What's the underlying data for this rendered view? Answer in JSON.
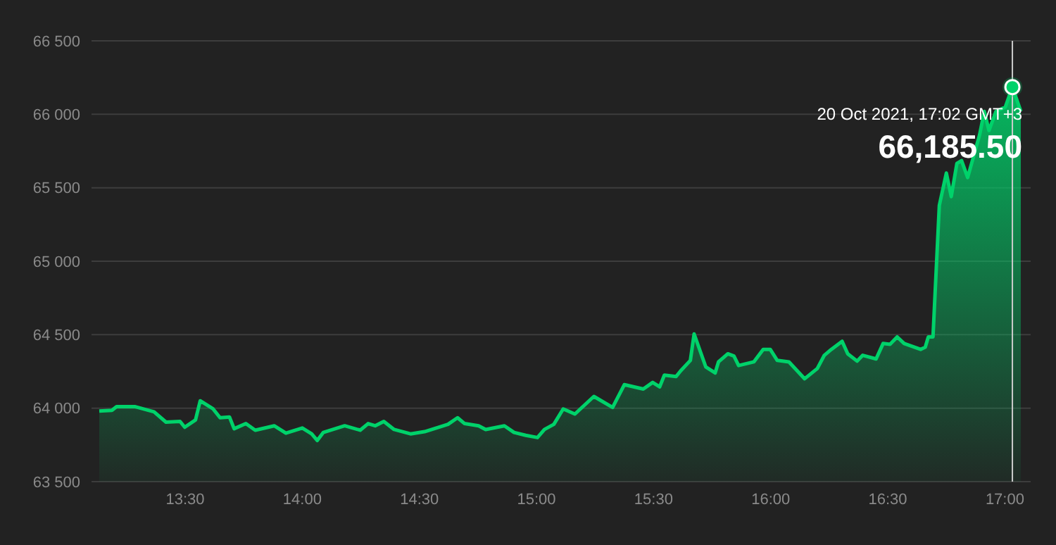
{
  "chart_data": {
    "type": "area",
    "grid": "y",
    "xlim": [
      13.1,
      17.11
    ],
    "xticks": [
      {
        "value": 13.5,
        "label": "13:30"
      },
      {
        "value": 14,
        "label": "14:00"
      },
      {
        "value": 14.5,
        "label": "14:30"
      },
      {
        "value": 15,
        "label": "15:00"
      },
      {
        "value": 15.5,
        "label": "15:30"
      },
      {
        "value": 16,
        "label": "16:00"
      },
      {
        "value": 16.5,
        "label": "16:30"
      },
      {
        "value": 17,
        "label": "17:00"
      }
    ],
    "ylim": [
      63500,
      66500
    ],
    "yticks": [
      {
        "value": 63500,
        "label": "63 500"
      },
      {
        "value": 64000,
        "label": "64 000"
      },
      {
        "value": 64500,
        "label": "64 500"
      },
      {
        "value": 65000,
        "label": "65 000"
      },
      {
        "value": 65500,
        "label": "65 500"
      },
      {
        "value": 66000,
        "label": "66 000"
      },
      {
        "value": 66500,
        "label": "66 500"
      }
    ],
    "x": [
      13.133,
      13.187,
      13.207,
      13.287,
      13.367,
      13.418,
      13.478,
      13.498,
      13.544,
      13.564,
      13.619,
      13.649,
      13.689,
      13.709,
      13.759,
      13.799,
      13.88,
      13.93,
      14.0,
      14.04,
      14.064,
      14.09,
      14.181,
      14.247,
      14.281,
      14.311,
      14.348,
      14.392,
      14.462,
      14.522,
      14.622,
      14.663,
      14.693,
      14.753,
      14.783,
      14.863,
      14.904,
      14.954,
      15.004,
      15.034,
      15.074,
      15.114,
      15.164,
      15.245,
      15.325,
      15.375,
      15.456,
      15.496,
      15.526,
      15.546,
      15.596,
      15.616,
      15.657,
      15.673,
      15.723,
      15.763,
      15.777,
      15.817,
      15.843,
      15.863,
      15.928,
      15.968,
      15.998,
      16.028,
      16.078,
      16.145,
      16.199,
      16.229,
      16.259,
      16.305,
      16.329,
      16.369,
      16.393,
      16.45,
      16.48,
      16.51,
      16.54,
      16.57,
      16.64,
      16.66,
      16.673,
      16.693,
      16.72,
      16.75,
      16.771,
      16.795,
      16.815,
      16.841,
      16.892,
      16.912,
      16.932,
      16.962,
      17.002,
      17.032,
      17.068
    ],
    "series": [
      {
        "color": "#00d26a",
        "values": [
          63980,
          63985,
          64010,
          64010,
          63975,
          63905,
          63910,
          63870,
          63920,
          64050,
          63995,
          63935,
          63940,
          63860,
          63895,
          63850,
          63880,
          63830,
          63865,
          63825,
          63780,
          63835,
          63880,
          63850,
          63895,
          63880,
          63910,
          63855,
          63825,
          63840,
          63890,
          63935,
          63895,
          63880,
          63855,
          63880,
          63835,
          63815,
          63800,
          63855,
          63890,
          63995,
          63960,
          64080,
          64005,
          64160,
          64130,
          64175,
          64145,
          64225,
          64215,
          64255,
          64325,
          64505,
          64280,
          64240,
          64315,
          64370,
          64355,
          64290,
          64315,
          64400,
          64400,
          64325,
          64315,
          64200,
          64270,
          64360,
          64400,
          64455,
          64370,
          64320,
          64360,
          64335,
          64440,
          64435,
          64485,
          64440,
          64400,
          64415,
          64485,
          64485,
          65380,
          65600,
          65440,
          65665,
          65685,
          65570,
          65860,
          66020,
          65890,
          66020,
          66050,
          66185.5,
          66020
        ]
      }
    ],
    "ref_lines": [
      {
        "axis": "x",
        "value": 17.032,
        "color": "#cccccc"
      }
    ],
    "annotations": [
      {
        "text": "20 Oct 2021, 17:02 GMT+3",
        "x": 17.032,
        "y": 66185.5
      },
      {
        "text": "66,185.50",
        "x": 17.032,
        "y": 66185.5
      }
    ]
  }
}
